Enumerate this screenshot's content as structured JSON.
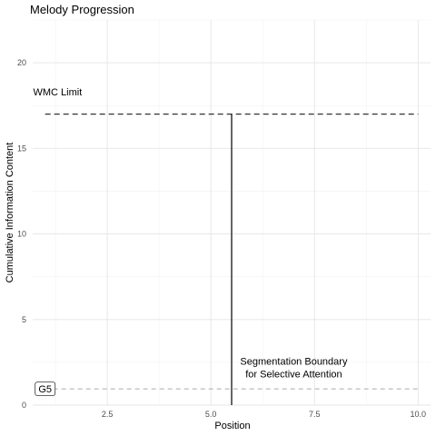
{
  "chart_data": {
    "type": "line",
    "title": "Melody Progression",
    "xlabel": "Position",
    "ylabel": "Cumulative Information Content",
    "xlim": [
      0.7,
      10.3
    ],
    "ylim": [
      0,
      22.5
    ],
    "x_ticks": [
      2.5,
      5.0,
      7.5,
      10.0
    ],
    "x_tick_labels": [
      "2.5",
      "5.0",
      "7.5",
      "10.0"
    ],
    "y_ticks": [
      0,
      5,
      10,
      15,
      20
    ],
    "y_tick_labels": [
      "0",
      "5",
      "10",
      "15",
      "20"
    ],
    "grid": true,
    "wmc_limit": {
      "y": 17,
      "x_start": 1.0,
      "x_end": 10.0,
      "label": "WMC Limit",
      "color": "#333333"
    },
    "baseline": {
      "y": 0.95,
      "x_start": 1.0,
      "x_end": 10.0,
      "color": "#aaaaaa"
    },
    "segmentation_boundary": {
      "x": 5.5,
      "y_start": 0,
      "y_end": 17,
      "label_line1": "Segmentation Boundary",
      "label_line2": "for Selective Attention",
      "color": "#000000"
    },
    "notes": [
      {
        "x": 1.0,
        "y": 0.95,
        "label": "G5"
      }
    ],
    "annotations": {
      "wmc": {
        "x": 1.3,
        "y": 18.3
      },
      "segmentation": {
        "x": 7.0,
        "y": 2.3
      }
    }
  }
}
